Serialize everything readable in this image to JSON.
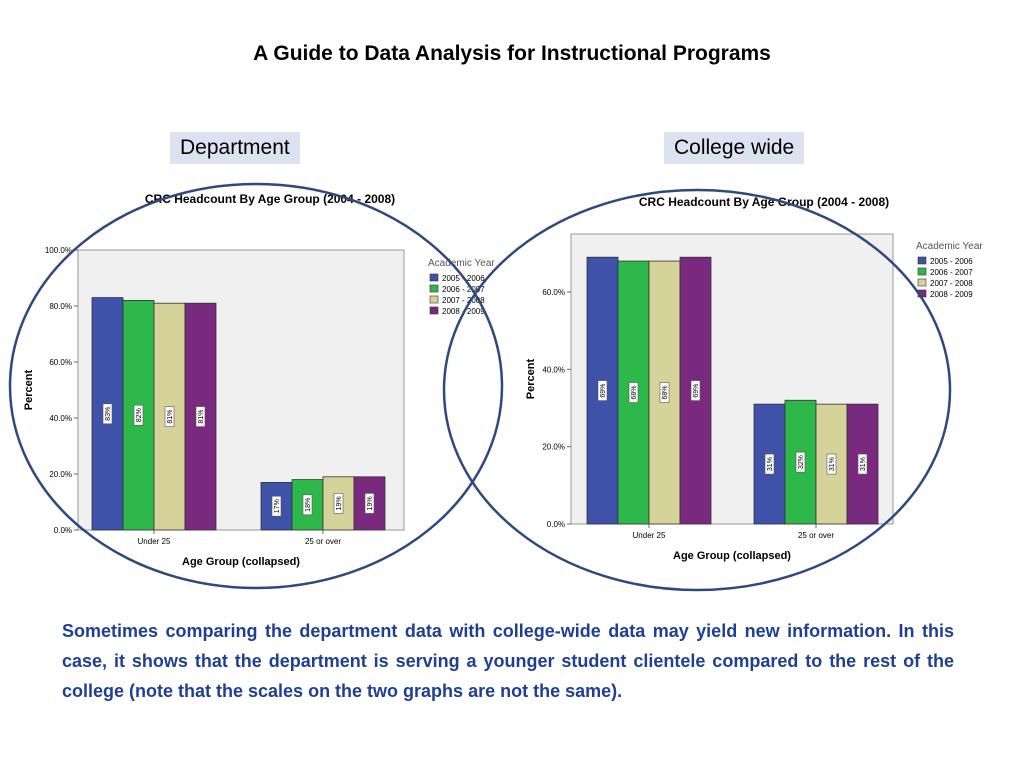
{
  "title": "A Guide to Data Analysis for Instructional Programs",
  "labels": {
    "department": "Department",
    "college_wide": "College wide"
  },
  "caption": "Sometimes comparing the department data with college-wide data may yield new information.  In this case, it shows that the department is serving a younger student clientele compared to the rest of the college (note that the scales on the two graphs are not the same).",
  "colors": {
    "2005 - 2006": "#3d52a8",
    "2006 - 2007": "#2fb84a",
    "2007 - 2008": "#d6d39a",
    "2008 - 2009": "#7a2a7e",
    "ellipse": "#2e4a7d"
  },
  "chart_data": [
    {
      "type": "bar",
      "title": "CRC Headcount By Age Group (2004 - 2008)",
      "xlabel": "Age Group (collapsed)",
      "ylabel": "Percent",
      "categories": [
        "Under 25",
        "25 or over"
      ],
      "ylim": [
        0,
        100
      ],
      "yticks": [
        "0.0%",
        "20.0%",
        "40.0%",
        "60.0%",
        "80.0%",
        "100.0%"
      ],
      "legend_title": "Academic Year",
      "legend_position": "right",
      "grid": false,
      "series": [
        {
          "name": "2005 - 2006",
          "values": [
            83,
            17
          ],
          "labels": [
            "83%",
            "17%"
          ]
        },
        {
          "name": "2006 - 2007",
          "values": [
            82,
            18
          ],
          "labels": [
            "82%",
            "18%"
          ]
        },
        {
          "name": "2007 - 2008",
          "values": [
            81,
            19
          ],
          "labels": [
            "81%",
            "19%"
          ]
        },
        {
          "name": "2008 - 2009",
          "values": [
            81,
            19
          ],
          "labels": [
            "81%",
            "19%"
          ]
        }
      ]
    },
    {
      "type": "bar",
      "title": "CRC Headcount By Age Group (2004 - 2008)",
      "xlabel": "Age Group (collapsed)",
      "ylabel": "Percent",
      "categories": [
        "Under 25",
        "25 or over"
      ],
      "ylim": [
        0,
        75
      ],
      "yticks": [
        "0.0%",
        "20.0%",
        "40.0%",
        "60.0%"
      ],
      "legend_title": "Academic Year",
      "legend_position": "right",
      "grid": false,
      "series": [
        {
          "name": "2005 - 2006",
          "values": [
            69,
            31
          ],
          "labels": [
            "69%",
            "31%"
          ]
        },
        {
          "name": "2006 - 2007",
          "values": [
            68,
            32
          ],
          "labels": [
            "68%",
            "32%"
          ]
        },
        {
          "name": "2007 - 2008",
          "values": [
            68,
            31
          ],
          "labels": [
            "68%",
            "31%"
          ]
        },
        {
          "name": "2008 - 2009",
          "values": [
            69,
            31
          ],
          "labels": [
            "69%",
            "31%"
          ]
        }
      ]
    }
  ]
}
